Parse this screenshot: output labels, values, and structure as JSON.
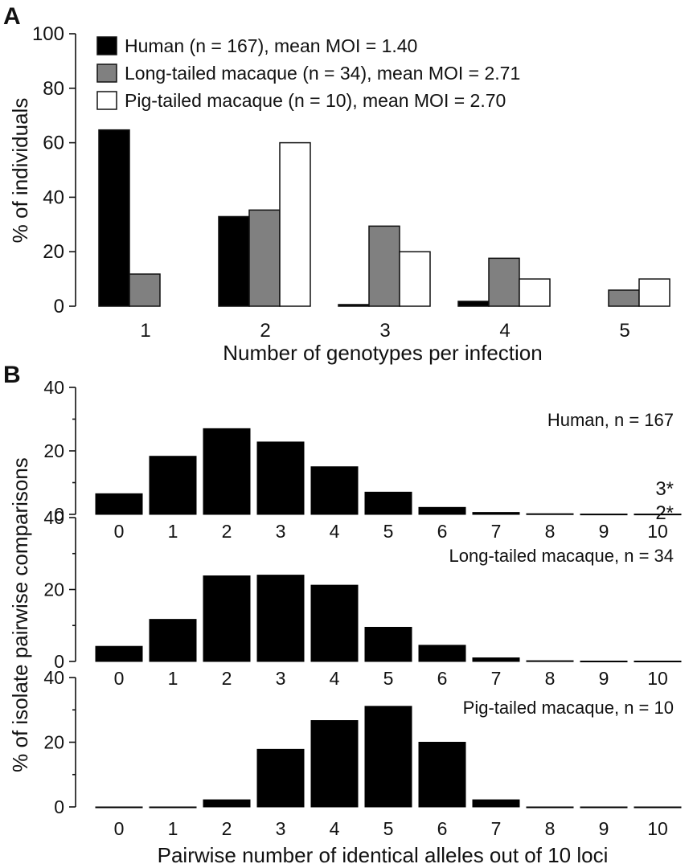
{
  "chart_data": [
    {
      "panel": "A",
      "type": "bar",
      "categories": [
        "1",
        "2",
        "3",
        "4",
        "5"
      ],
      "series": [
        {
          "name": "Human (n = 167), mean MOI = 1.40",
          "color": "#000000",
          "values": [
            64.7,
            32.9,
            0.6,
            1.8,
            0
          ]
        },
        {
          "name": "Long-tailed macaque (n = 34), mean MOI = 2.71",
          "color": "#808080",
          "values": [
            11.8,
            35.3,
            29.4,
            17.6,
            5.9
          ]
        },
        {
          "name": "Pig-tailed macaque (n = 10), mean MOI = 2.70",
          "color": "#ffffff",
          "values": [
            0,
            60,
            20,
            10,
            10
          ]
        }
      ],
      "xlabel": "Number of genotypes per infection",
      "ylabel": "% of individuals",
      "ylim": [
        0,
        100
      ],
      "yticks": [
        "0",
        "20",
        "40",
        "60",
        "80",
        "100"
      ],
      "legend_position": "top-left",
      "grid": false
    },
    {
      "panel": "B",
      "type": "bar",
      "categories": [
        "0",
        "1",
        "2",
        "3",
        "4",
        "5",
        "6",
        "7",
        "8",
        "9",
        "10"
      ],
      "series": [
        {
          "name": "Human, n = 167",
          "values": [
            6.5,
            18.3,
            27.0,
            22.8,
            15.0,
            7.0,
            2.2,
            0.6,
            0.2,
            0.1,
            0.1
          ]
        },
        {
          "name": "Long-tailed macaque, n = 34",
          "values": [
            4.2,
            11.7,
            23.8,
            24.0,
            21.2,
            9.5,
            4.5,
            1.0,
            0.2,
            0.1,
            0.1
          ]
        },
        {
          "name": "Pig-tailed macaque, n = 10",
          "values": [
            0,
            0,
            2.2,
            17.8,
            26.7,
            31.1,
            20.0,
            2.2,
            0,
            0,
            0
          ]
        }
      ],
      "annotations": [
        "3*",
        "2*"
      ],
      "xlabel": "Pairwise number of identical alleles out of 10 loci",
      "ylabel": "% of isolate pairwise comparisons",
      "ylim": [
        0,
        40
      ],
      "yticks": [
        "0",
        "20",
        "40"
      ],
      "grid": false
    }
  ]
}
